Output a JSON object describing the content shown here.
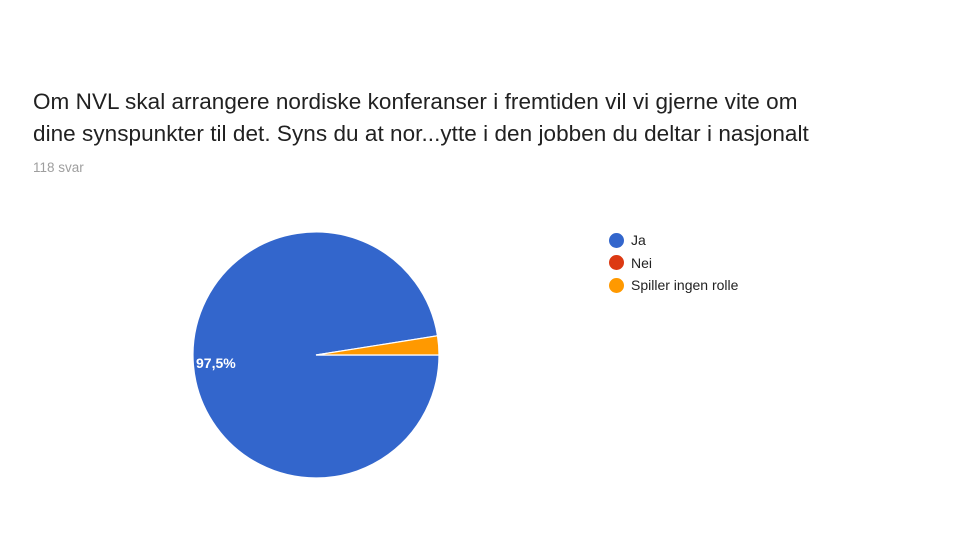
{
  "question": {
    "title_lines": [
      "Om NVL skal arrangere nordiske konferanser i fremtiden vil vi gjerne vite om",
      "dine synspunkter til det. Syns du at nor...ytte i den jobben du deltar i nasjonalt"
    ],
    "response_count": "118 svar"
  },
  "legend": [
    {
      "label": "Ja",
      "color": "#3366cc"
    },
    {
      "label": "Nei",
      "color": "#dc3912"
    },
    {
      "label": "Spiller ingen rolle",
      "color": "#ff9900"
    }
  ],
  "slice_labels": {
    "ja": "97,5%"
  },
  "chart_data": {
    "type": "pie",
    "title": "Om NVL skal arrangere nordiske konferanser i fremtiden vil vi gjerne vite om dine synspunkter til det. Syns du at nor...ytte i den jobben du deltar i nasjonalt",
    "subtitle": "118 svar",
    "categories": [
      "Ja",
      "Nei",
      "Spiller ingen rolle"
    ],
    "values": [
      97.5,
      0,
      2.5
    ],
    "unit": "%",
    "colors": [
      "#3366cc",
      "#dc3912",
      "#ff9900"
    ],
    "data_labels": [
      "97,5%",
      "",
      ""
    ],
    "legend_position": "right"
  }
}
